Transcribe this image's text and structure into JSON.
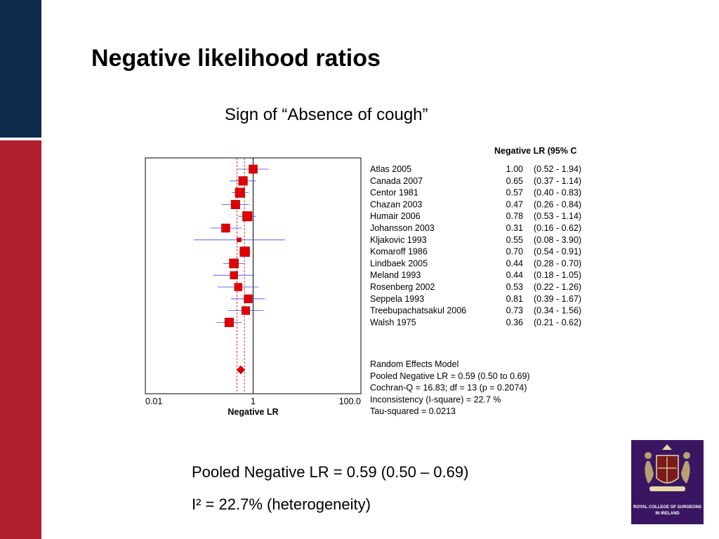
{
  "slide": {
    "title": "Negative likelihood ratios",
    "subtitle": "Sign of “Absence of cough”",
    "pooled_line": "Pooled Negative LR = 0.59 (0.50 – 0.69)",
    "heterogeneity_line": "I² = 22.7% (heterogeneity)",
    "logo_text_1": "ROYAL COLLEGE OF SURGEONS",
    "logo_text_2": "IN IRELAND"
  },
  "colors": {
    "navy": "#0e2a4c",
    "crimson": "#b01e2f",
    "marker": "#e00000",
    "ci_line": "#3b49e0",
    "logo_bg": "#3a1561"
  },
  "chart_data": {
    "type": "forest",
    "xscale": "log",
    "xlim": [
      0.01,
      100.0
    ],
    "xticks": [
      "0.01",
      "1",
      "100.0"
    ],
    "xlabel": "Negative LR",
    "table_header": "Negative LR (95% C",
    "studies": [
      {
        "name": "Atlas 2005",
        "lr": 1.0,
        "lr_text": "1.00",
        "lo": 0.52,
        "hi": 1.94,
        "ci_text": "(0.52 - 1.94)"
      },
      {
        "name": "Canada 2007",
        "lr": 0.65,
        "lr_text": "0.65",
        "lo": 0.37,
        "hi": 1.14,
        "ci_text": "(0.37 - 1.14)"
      },
      {
        "name": "Centor 1981",
        "lr": 0.57,
        "lr_text": "0.57",
        "lo": 0.4,
        "hi": 0.83,
        "ci_text": "(0.40 - 0.83)"
      },
      {
        "name": "Chazan 2003",
        "lr": 0.47,
        "lr_text": "0.47",
        "lo": 0.26,
        "hi": 0.84,
        "ci_text": "(0.26 - 0.84)"
      },
      {
        "name": "Humair 2006",
        "lr": 0.78,
        "lr_text": "0.78",
        "lo": 0.53,
        "hi": 1.14,
        "ci_text": "(0.53 - 1.14)"
      },
      {
        "name": "Johansson 2003",
        "lr": 0.31,
        "lr_text": "0.31",
        "lo": 0.16,
        "hi": 0.62,
        "ci_text": "(0.16 - 0.62)"
      },
      {
        "name": "Kljakovic 1993",
        "lr": 0.55,
        "lr_text": "0.55",
        "lo": 0.08,
        "hi": 3.9,
        "ci_text": "(0.08 - 3.90)"
      },
      {
        "name": "Komaroff 1986",
        "lr": 0.7,
        "lr_text": "0.70",
        "lo": 0.54,
        "hi": 0.91,
        "ci_text": "(0.54 - 0.91)"
      },
      {
        "name": "Lindbaek 2005",
        "lr": 0.44,
        "lr_text": "0.44",
        "lo": 0.28,
        "hi": 0.7,
        "ci_text": "(0.28 - 0.70)"
      },
      {
        "name": "Meland 1993",
        "lr": 0.44,
        "lr_text": "0.44",
        "lo": 0.18,
        "hi": 1.05,
        "ci_text": "(0.18 - 1.05)"
      },
      {
        "name": "Rosenberg 2002",
        "lr": 0.53,
        "lr_text": "0.53",
        "lo": 0.22,
        "hi": 1.26,
        "ci_text": "(0.22 - 1.26)"
      },
      {
        "name": "Seppela 1993",
        "lr": 0.81,
        "lr_text": "0.81",
        "lo": 0.39,
        "hi": 1.67,
        "ci_text": "(0.39 - 1.67)"
      },
      {
        "name": "Treebupachatsakul 2006",
        "lr": 0.73,
        "lr_text": "0.73",
        "lo": 0.34,
        "hi": 1.56,
        "ci_text": "(0.34 - 1.56)"
      },
      {
        "name": "Walsh 1975",
        "lr": 0.36,
        "lr_text": "0.36",
        "lo": 0.21,
        "hi": 0.62,
        "ci_text": "(0.21 - 0.62)"
      }
    ],
    "pooled": {
      "lr": 0.59,
      "lo": 0.5,
      "hi": 0.69
    },
    "stats_lines": [
      "Random Effects Model",
      "Pooled Negative LR = 0.59 (0.50 to 0.69)",
      "Cochran-Q = 16.83; df =  13 (p = 0.2074)",
      "Inconsistency (I-square) = 22.7 %",
      "Tau-squared = 0.0213"
    ]
  }
}
